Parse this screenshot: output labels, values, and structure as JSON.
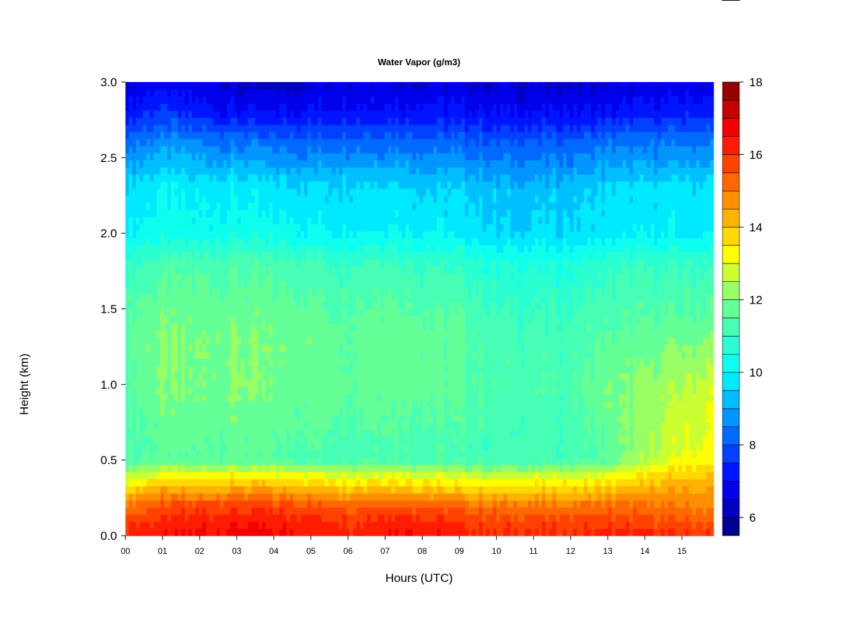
{
  "chart_data": {
    "type": "heatmap",
    "title": "Water Vapor (g/m3)",
    "xlabel": "Hours (UTC)",
    "ylabel": "Height (km)",
    "x_tick_labels": [
      "00",
      "01",
      "02",
      "03",
      "04",
      "05",
      "06",
      "07",
      "08",
      "09",
      "10",
      "11",
      "12",
      "13",
      "14",
      "15"
    ],
    "x_tick_values": [
      0,
      1,
      2,
      3,
      4,
      5,
      6,
      7,
      8,
      9,
      10,
      11,
      12,
      13,
      14,
      15
    ],
    "xlim": [
      0,
      15.85
    ],
    "y_tick_labels": [
      "0.0",
      "0.5",
      "1.0",
      "1.5",
      "2.0",
      "2.5",
      "3.0"
    ],
    "y_tick_values": [
      0,
      0.5,
      1.0,
      1.5,
      2.0,
      2.5,
      3.0
    ],
    "ylim": [
      0,
      3.0
    ],
    "colorbar": {
      "min": 5.5,
      "max": 18,
      "step": 0.5,
      "tick_labels": [
        "6",
        "8",
        "10",
        "12",
        "14",
        "16",
        "18"
      ],
      "tick_values": [
        6,
        8,
        10,
        12,
        14,
        16,
        18
      ]
    },
    "hours": [
      0,
      1,
      2,
      3,
      4,
      5,
      6,
      7,
      8,
      9,
      10,
      11,
      12,
      13,
      14,
      15,
      15.85
    ],
    "heights_km": [
      0.0,
      0.1,
      0.2,
      0.3,
      0.4,
      0.5,
      0.7,
      1.0,
      1.3,
      1.5,
      1.8,
      2.0,
      2.3,
      2.6,
      2.8,
      3.0
    ],
    "water_vapor_g_m3": [
      [
        16.3,
        16.4,
        16.6,
        16.8,
        16.6,
        16.4,
        16.2,
        16.6,
        16.5,
        16.3,
        16.0,
        16.1,
        16.1,
        16.2,
        16.2,
        16.1,
        16.0
      ],
      [
        15.9,
        16.1,
        16.3,
        16.4,
        16.3,
        16.2,
        16.0,
        16.3,
        16.2,
        16.0,
        15.7,
        15.8,
        15.7,
        15.8,
        15.6,
        15.5,
        15.3
      ],
      [
        15.0,
        15.5,
        15.7,
        15.8,
        15.7,
        15.6,
        15.4,
        15.6,
        15.4,
        15.3,
        15.1,
        15.1,
        15.0,
        15.2,
        15.1,
        15.0,
        14.9
      ],
      [
        13.8,
        14.4,
        14.4,
        14.6,
        14.5,
        14.3,
        14.1,
        14.3,
        14.1,
        14.0,
        13.8,
        13.9,
        13.9,
        14.2,
        14.4,
        14.5,
        14.5
      ],
      [
        12.6,
        13.1,
        13.2,
        13.3,
        13.2,
        13.0,
        12.9,
        13.1,
        12.9,
        12.8,
        12.7,
        12.8,
        12.8,
        13.0,
        13.5,
        13.9,
        14.0
      ],
      [
        11.4,
        11.6,
        11.5,
        11.6,
        11.5,
        11.4,
        11.3,
        11.4,
        11.3,
        11.2,
        11.1,
        11.2,
        11.2,
        11.6,
        12.4,
        13.1,
        13.3
      ],
      [
        11.3,
        11.7,
        11.6,
        11.8,
        11.6,
        11.6,
        11.5,
        11.6,
        11.5,
        11.4,
        11.2,
        11.2,
        11.2,
        11.7,
        12.2,
        12.8,
        13.1
      ],
      [
        11.5,
        12.0,
        11.9,
        12.1,
        11.9,
        11.8,
        11.7,
        11.8,
        11.7,
        11.6,
        11.3,
        11.3,
        11.3,
        11.9,
        12.1,
        12.5,
        12.8
      ],
      [
        11.6,
        12.0,
        11.9,
        12.0,
        11.9,
        11.8,
        11.7,
        11.9,
        11.7,
        11.6,
        11.2,
        11.2,
        11.2,
        11.6,
        11.7,
        11.9,
        12.0
      ],
      [
        11.4,
        11.8,
        11.8,
        11.8,
        11.7,
        11.6,
        11.5,
        11.7,
        11.5,
        11.4,
        11.0,
        11.0,
        11.0,
        11.3,
        11.4,
        11.5,
        11.5
      ],
      [
        10.9,
        11.3,
        11.3,
        11.4,
        11.3,
        11.2,
        11.0,
        11.2,
        11.0,
        10.9,
        10.5,
        10.5,
        10.5,
        10.8,
        10.9,
        11.0,
        11.0
      ],
      [
        10.0,
        10.3,
        10.2,
        10.3,
        10.2,
        10.1,
        10.0,
        10.1,
        10.0,
        9.9,
        9.5,
        9.6,
        9.6,
        9.8,
        9.9,
        9.9,
        9.9
      ],
      [
        9.6,
        10.0,
        9.8,
        9.9,
        9.7,
        9.6,
        9.6,
        9.7,
        9.5,
        9.5,
        9.2,
        9.2,
        9.3,
        9.5,
        9.6,
        9.7,
        9.7
      ],
      [
        8.3,
        8.7,
        8.5,
        8.4,
        8.2,
        8.2,
        8.3,
        8.3,
        8.2,
        8.2,
        8.0,
        8.1,
        8.1,
        8.3,
        8.4,
        8.4,
        8.4
      ],
      [
        7.2,
        7.6,
        7.3,
        7.1,
        7.0,
        7.1,
        7.2,
        7.2,
        7.2,
        7.1,
        7.0,
        7.0,
        7.0,
        7.1,
        7.2,
        7.3,
        7.3
      ],
      [
        6.6,
        6.8,
        6.6,
        6.4,
        6.2,
        6.4,
        6.5,
        6.6,
        6.5,
        6.5,
        6.5,
        6.4,
        6.4,
        6.5,
        6.5,
        6.6,
        6.6
      ]
    ]
  }
}
